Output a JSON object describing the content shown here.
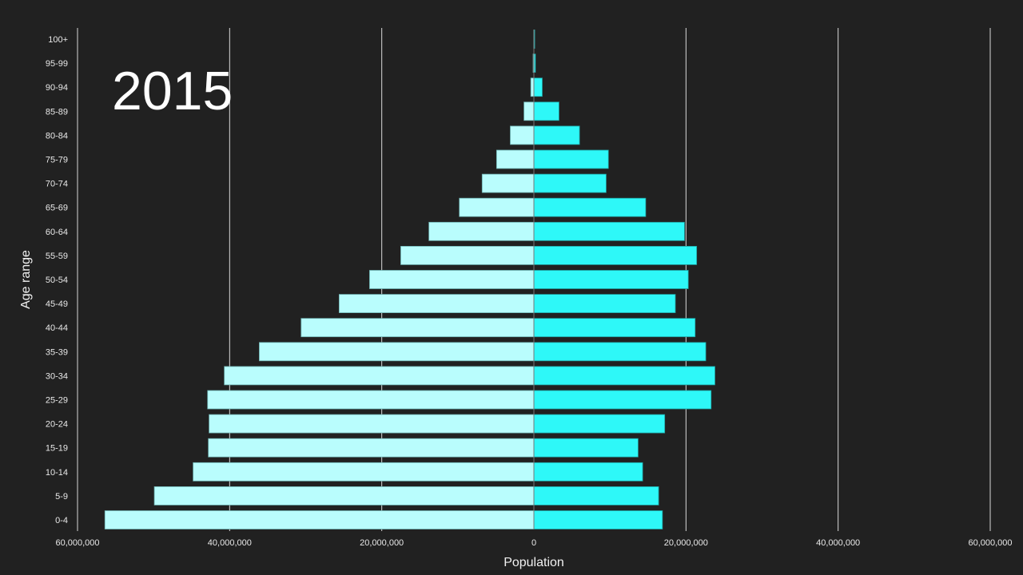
{
  "chart_data": {
    "type": "bar",
    "orientation": "horizontal",
    "layout": "population-pyramid",
    "annotation": "2015",
    "xlabel": "Population",
    "ylabel": "Age range",
    "xlim": [
      -60000000,
      60000000
    ],
    "x_ticks": [
      -60000000,
      -40000000,
      -20000000,
      0,
      20000000,
      40000000,
      60000000
    ],
    "x_tick_labels": [
      "60,000,000",
      "40,000,000",
      "20,000,000",
      "0",
      "20,000,000",
      "40,000,000",
      "60,000,000"
    ],
    "grid": "vertical",
    "categories": [
      "100+",
      "95-99",
      "90-94",
      "85-89",
      "80-84",
      "75-79",
      "70-74",
      "65-69",
      "60-64",
      "55-59",
      "50-54",
      "45-49",
      "40-44",
      "35-39",
      "30-34",
      "25-29",
      "20-24",
      "15-19",
      "10-14",
      "5-9",
      "0-4"
    ],
    "series": [
      {
        "side": "left",
        "color": "#b9fdfd",
        "values": [
          20000,
          100000,
          400000,
          1300000,
          3100000,
          4900000,
          6800000,
          9800000,
          13800000,
          17500000,
          21600000,
          25600000,
          30600000,
          36100000,
          40700000,
          42900000,
          42700000,
          42800000,
          44800000,
          49900000,
          56400000
        ]
      },
      {
        "side": "right",
        "color": "#2ef8f8",
        "values": [
          50000,
          200000,
          1100000,
          3300000,
          6000000,
          9800000,
          9500000,
          14700000,
          19800000,
          21400000,
          20300000,
          18600000,
          21200000,
          22600000,
          23800000,
          23300000,
          17200000,
          13700000,
          14300000,
          16400000,
          16900000
        ]
      }
    ]
  }
}
